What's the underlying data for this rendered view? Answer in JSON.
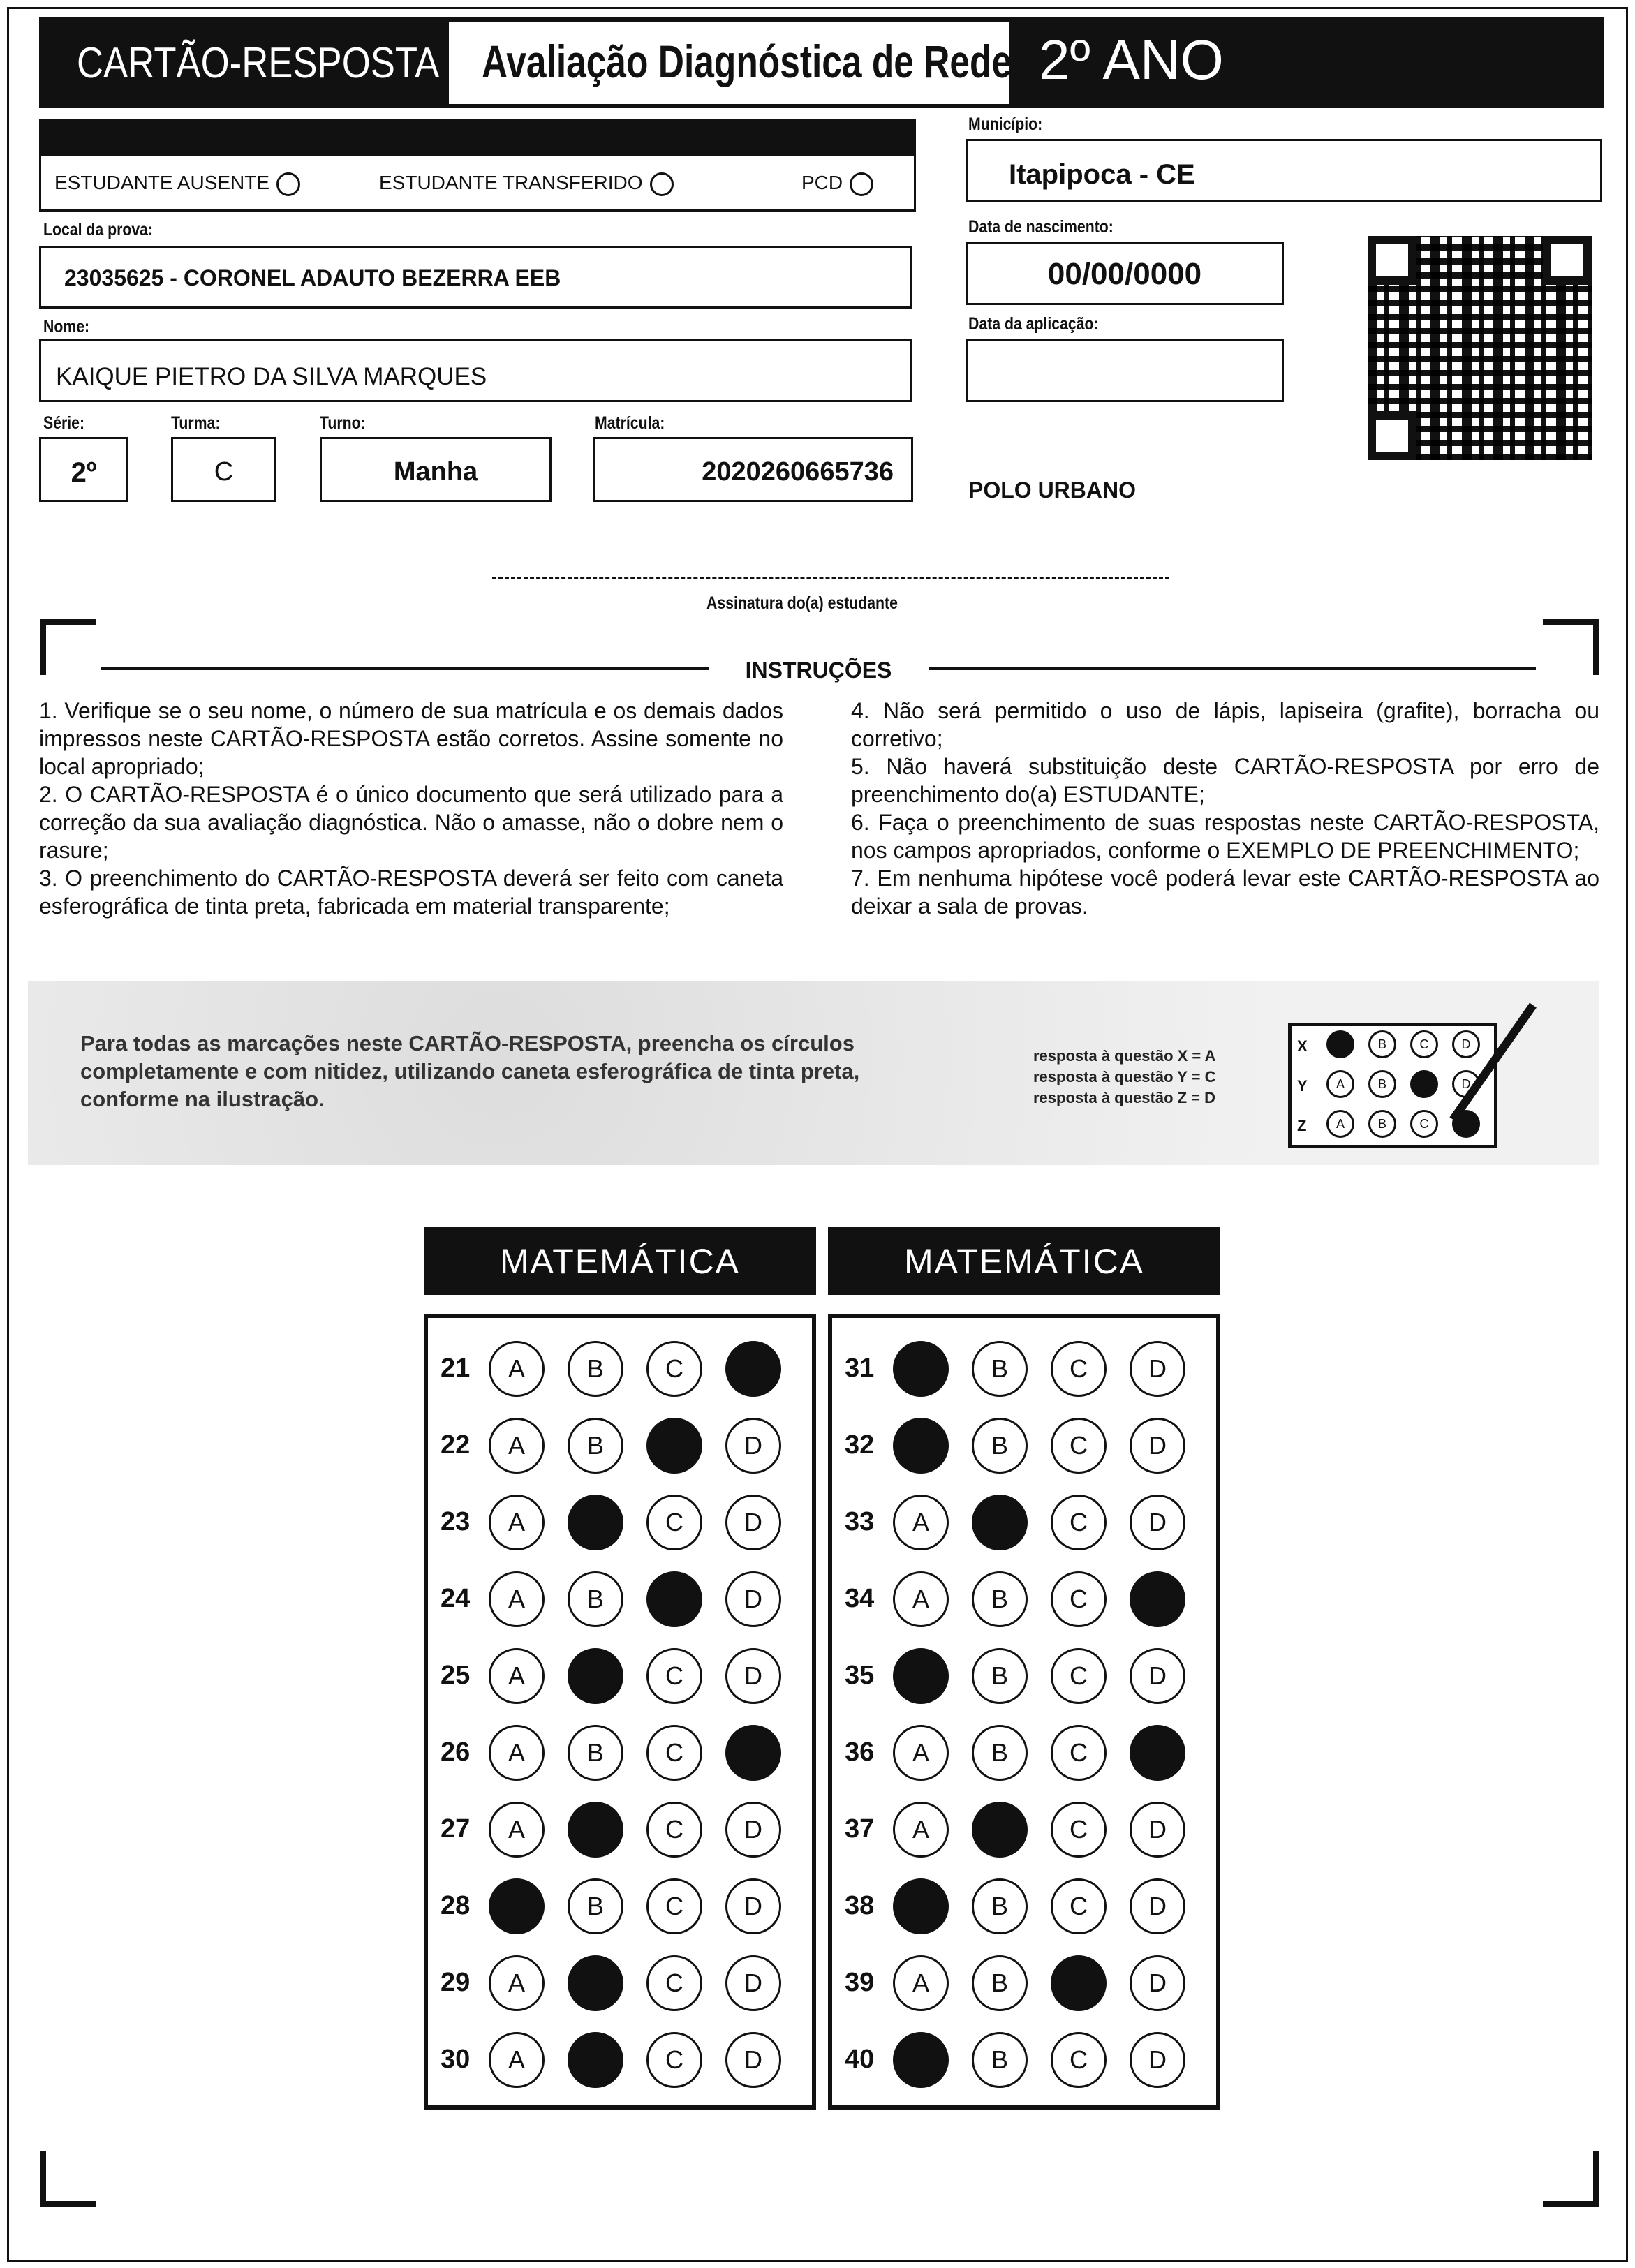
{
  "header": {
    "title": "CARTÃO-RESPOSTA",
    "subtitle": "Avaliação Diagnóstica de Rede",
    "grade": "2º ANO"
  },
  "aplicador": {
    "options": [
      "ESTUDANTE AUSENTE",
      "ESTUDANTE TRANSFERIDO",
      "PCD"
    ]
  },
  "fields": {
    "municipio_label": "Município:",
    "municipio": "Itapipoca - CE",
    "local_label": "Local da prova:",
    "local": "23035625 - CORONEL ADAUTO BEZERRA EEB",
    "nascimento_label": "Data de nascimento:",
    "nascimento": "00/00/0000",
    "nome_label": "Nome:",
    "nome": "KAIQUE PIETRO DA SILVA MARQUES",
    "aplicacao_label": "Data da aplicação:",
    "aplicacao": "",
    "serie_label": "Série:",
    "serie": "2º",
    "turma_label": "Turma:",
    "turma": "C",
    "turno_label": "Turno:",
    "turno": "Manha",
    "matricula_label": "Matrícula:",
    "matricula": "2020260665736",
    "polo": "POLO URBANO"
  },
  "signature_label": "Assinatura do(a) estudante",
  "instructions": {
    "title": "INSTRUÇÕES",
    "left": [
      "1. Verifique se o seu nome, o número de sua matrícula e os demais dados impressos neste CARTÃO-RESPOSTA estão corretos. Assine somente no local apropriado;",
      "2. O CARTÃO-RESPOSTA é o único documento que será utilizado para a correção da sua avaliação diagnóstica. Não o amasse, não o dobre nem o rasure;",
      "3. O preenchimento do CARTÃO-RESPOSTA deverá ser feito com caneta esferográfica de tinta preta, fabricada em material transparente;"
    ],
    "right": [
      "4. Não será permitido o uso de lápis, lapiseira (grafite), borracha ou corretivo;",
      "5. Não haverá substituição deste CARTÃO-RESPOSTA por erro de preenchimento do(a) ESTUDANTE;",
      "6. Faça o preenchimento de suas respostas neste CARTÃO-RESPOSTA, nos campos apropriados, conforme o EXEMPLO DE PREENCHIMENTO;",
      "7. Em nenhuma hipótese você poderá levar este CARTÃO-RESPOSTA ao deixar a sala de provas."
    ]
  },
  "example": {
    "text": "Para todas as marcações neste CARTÃO-RESPOSTA, preencha os círculos completamente e com nitidez, utilizando caneta esferográfica de tinta preta, conforme na ilustração.",
    "legend": [
      "resposta à questão X = A",
      "resposta à questão Y = C",
      "resposta à questão Z = D"
    ],
    "rows": [
      {
        "q": "X",
        "mark": "A"
      },
      {
        "q": "Y",
        "mark": "C"
      },
      {
        "q": "Z",
        "mark": "D"
      }
    ]
  },
  "options": [
    "A",
    "B",
    "C",
    "D"
  ],
  "sections": [
    {
      "title": "MATEMÁTICA",
      "questions": [
        {
          "n": "21",
          "mark": "D"
        },
        {
          "n": "22",
          "mark": "C"
        },
        {
          "n": "23",
          "mark": "B"
        },
        {
          "n": "24",
          "mark": "C"
        },
        {
          "n": "25",
          "mark": "B"
        },
        {
          "n": "26",
          "mark": "D"
        },
        {
          "n": "27",
          "mark": "B"
        },
        {
          "n": "28",
          "mark": "A"
        },
        {
          "n": "29",
          "mark": "B"
        },
        {
          "n": "30",
          "mark": "B"
        }
      ]
    },
    {
      "title": "MATEMÁTICA",
      "questions": [
        {
          "n": "31",
          "mark": "A"
        },
        {
          "n": "32",
          "mark": "A"
        },
        {
          "n": "33",
          "mark": "B"
        },
        {
          "n": "34",
          "mark": "D"
        },
        {
          "n": "35",
          "mark": "A"
        },
        {
          "n": "36",
          "mark": "D"
        },
        {
          "n": "37",
          "mark": "B"
        },
        {
          "n": "38",
          "mark": "A"
        },
        {
          "n": "39",
          "mark": "C"
        },
        {
          "n": "40",
          "mark": "A"
        }
      ]
    }
  ]
}
